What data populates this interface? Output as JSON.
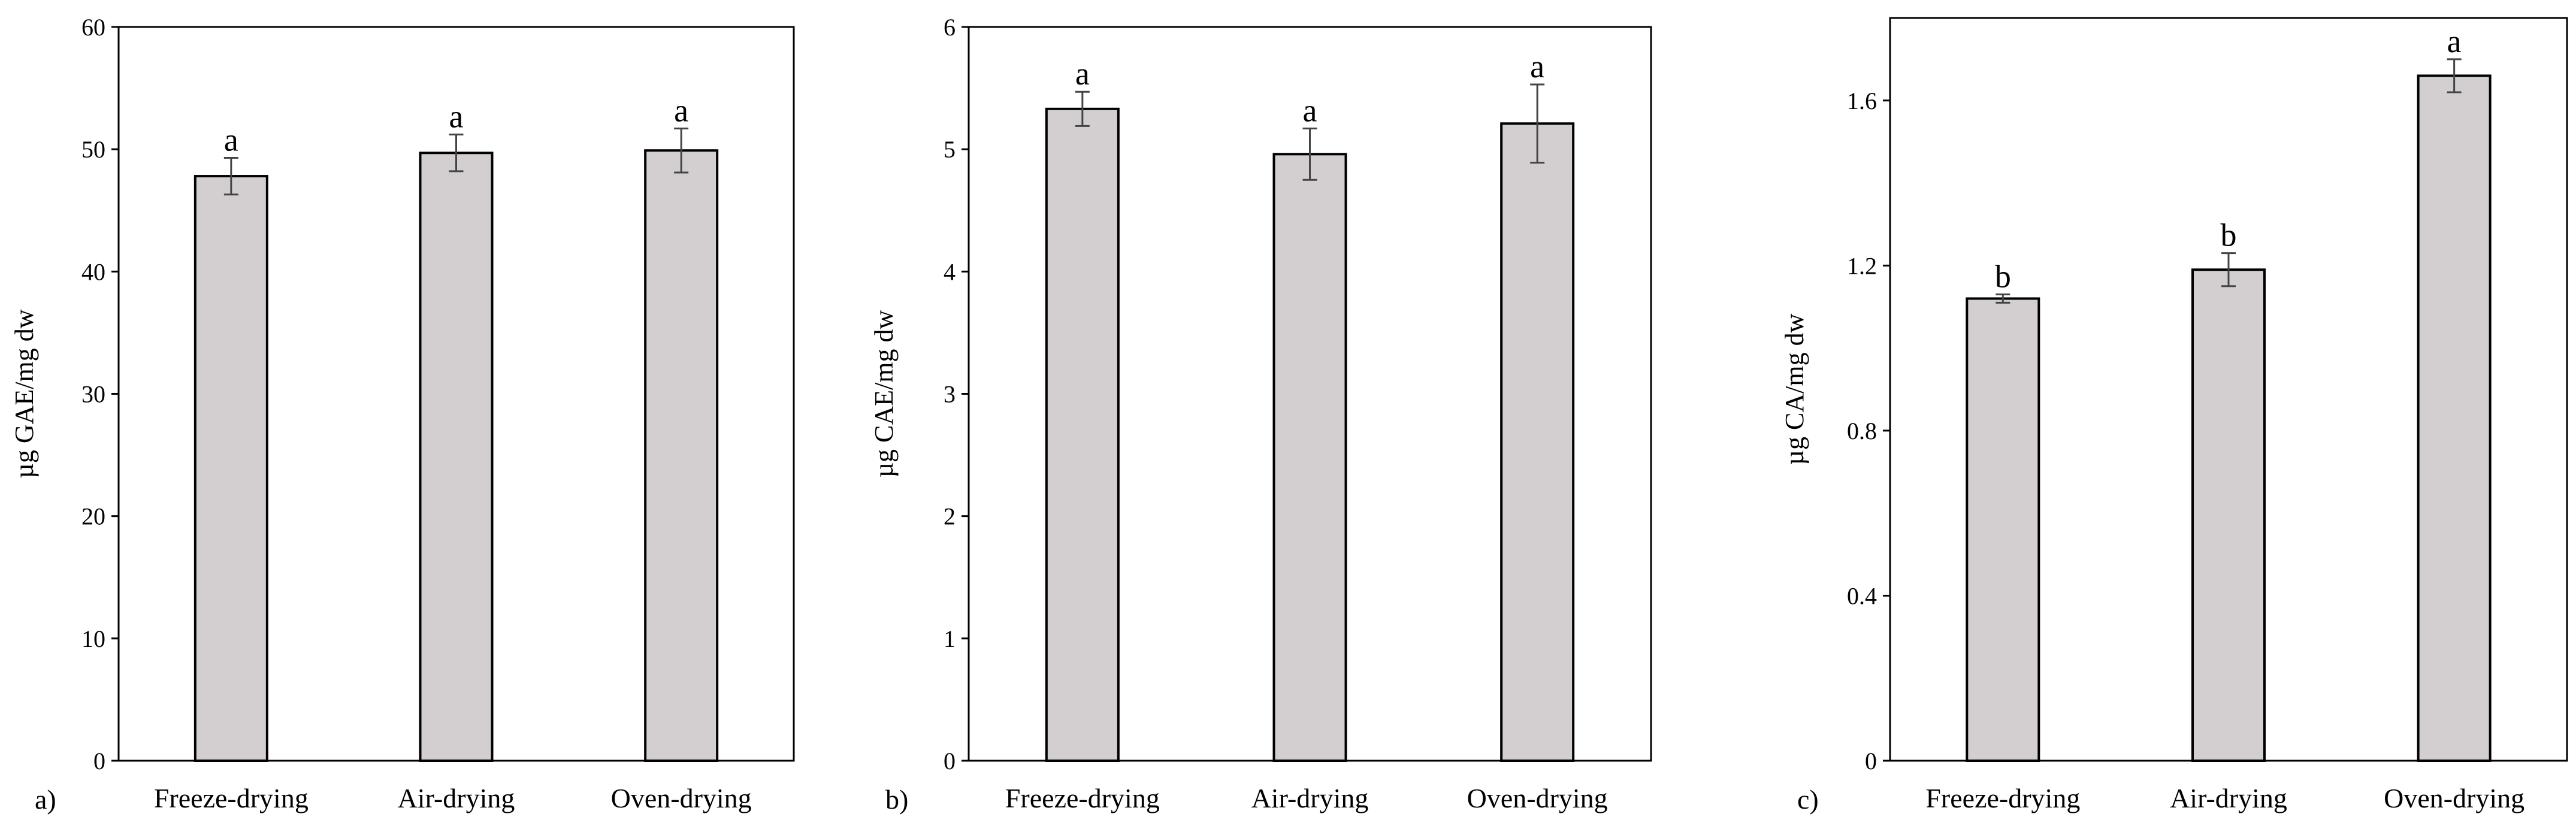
{
  "chart_data": [
    {
      "type": "bar",
      "panel_label": "a)",
      "categories": [
        "Freeze-drying",
        "Air-drying",
        "Oven-drying"
      ],
      "values": [
        47.8,
        49.7,
        49.9
      ],
      "errors": [
        1.5,
        1.5,
        1.8
      ],
      "significance": [
        "a",
        "a",
        "a"
      ],
      "ylabel": "µg GAE/mg dw",
      "ylim": [
        0,
        60
      ],
      "yticks": [
        0,
        10,
        20,
        30,
        40,
        50,
        60
      ],
      "ytick_labels": [
        "0",
        "10",
        "20",
        "30",
        "40",
        "50",
        "60"
      ],
      "bar_color": "#d3cfd0",
      "grid": false
    },
    {
      "type": "bar",
      "panel_label": "b)",
      "categories": [
        "Freeze-drying",
        "Air-drying",
        "Oven-drying"
      ],
      "values": [
        5.33,
        4.96,
        5.21
      ],
      "errors": [
        0.14,
        0.21,
        0.32
      ],
      "significance": [
        "a",
        "a",
        "a"
      ],
      "ylabel": "µg CAE/mg dw",
      "ylim": [
        0,
        6
      ],
      "yticks": [
        0,
        1,
        2,
        3,
        4,
        5,
        6
      ],
      "ytick_labels": [
        "0",
        "1",
        "2",
        "3",
        "4",
        "5",
        "6"
      ],
      "bar_color": "#d3cfd0",
      "grid": false
    },
    {
      "type": "bar",
      "panel_label": "c)",
      "categories": [
        "Freeze-drying",
        "Air-drying",
        "Oven-drying"
      ],
      "values": [
        1.12,
        1.19,
        1.66
      ],
      "errors": [
        0.01,
        0.04,
        0.04
      ],
      "significance": [
        "b",
        "b",
        "a"
      ],
      "ylabel": "µg CA/mg dw",
      "ylim": [
        0,
        1.8
      ],
      "yticks": [
        0,
        0.4,
        0.8,
        1.2,
        1.6
      ],
      "ytick_labels": [
        "0",
        "0.4",
        "0.8",
        "1.2",
        "1.6"
      ],
      "bar_color": "#d3cfd0",
      "grid": false
    }
  ]
}
